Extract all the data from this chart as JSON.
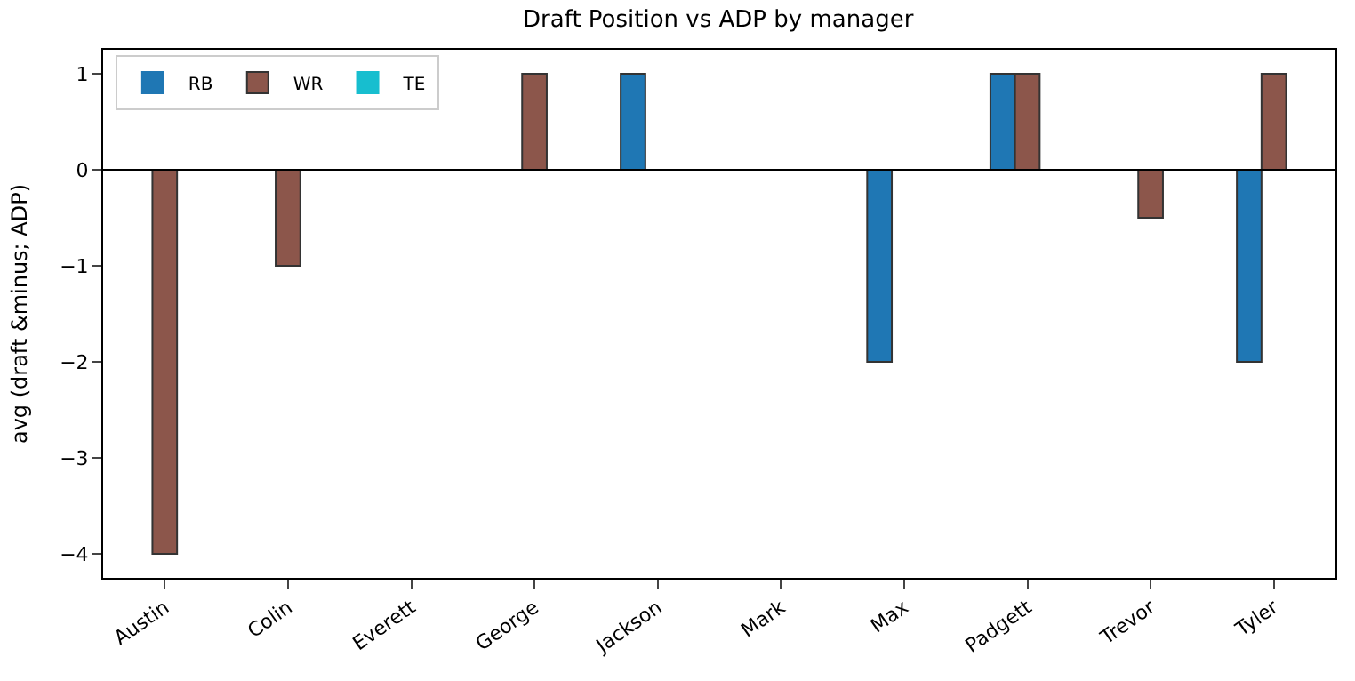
{
  "chart_data": {
    "type": "bar",
    "title": "Draft Position vs ADP by manager",
    "ylabel": "avg (draft &minus; ADP)",
    "categories": [
      "Austin",
      "Colin",
      "Everett",
      "George",
      "Jackson",
      "Mark",
      "Max",
      "Padgett",
      "Trevor",
      "Tyler"
    ],
    "series": [
      {
        "name": "RB",
        "color": "#1f77b4",
        "values": [
          0,
          0,
          0,
          0,
          1,
          0,
          -2,
          1,
          0,
          -2
        ]
      },
      {
        "name": "WR",
        "color": "#8c564b",
        "values": [
          -4,
          -1,
          0,
          1,
          0,
          0,
          0,
          1,
          -0.5,
          1
        ]
      },
      {
        "name": "TE",
        "color": "#17becf",
        "values": [
          0,
          0,
          0,
          0,
          0,
          0,
          0,
          0,
          0,
          0
        ]
      }
    ],
    "ylim": [
      -4.25,
      1.25
    ],
    "yticks": [
      {
        "value": -4,
        "label": "−4"
      },
      {
        "value": -3,
        "label": "−3"
      },
      {
        "value": -2,
        "label": "−2"
      },
      {
        "value": -1,
        "label": "−1"
      },
      0,
      1
    ],
    "ref_lines": [
      {
        "axis": "y",
        "value": 0,
        "color": "#000000"
      }
    ],
    "legend": "top left"
  }
}
